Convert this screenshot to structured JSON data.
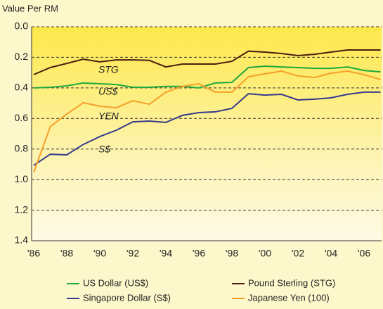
{
  "chart_data": {
    "type": "line",
    "y_label": "Value Per RM",
    "categories": [
      "'86",
      null,
      "'88",
      null,
      "'90",
      null,
      "'92",
      null,
      "'94",
      null,
      "'96",
      null,
      "'98",
      null,
      "'00",
      null,
      "'02",
      null,
      "'04",
      null,
      "'06",
      null
    ],
    "ylim": [
      0,
      1.4
    ],
    "y_inverted": true,
    "yticks": [
      {
        "value": 0,
        "label": "0.0"
      },
      0.2,
      0.4,
      0.6,
      0.8,
      {
        "value": 1,
        "label": "1.0"
      },
      1.2,
      1.4
    ],
    "grid": true,
    "annotations": [
      "STG",
      "US$",
      "YEN",
      "S$"
    ],
    "series": [
      {
        "name": "US Dollar (US$)",
        "color": "#1fa83c",
        "values": [
          0.4,
          0.396,
          0.387,
          0.368,
          0.373,
          0.378,
          0.396,
          0.396,
          0.39,
          0.39,
          0.4,
          0.368,
          0.364,
          0.267,
          0.258,
          0.263,
          0.267,
          0.272,
          0.272,
          0.263,
          0.286,
          0.295
        ]
      },
      {
        "name": "Pound Sterling (STG)",
        "color": "#4a1f10",
        "values": [
          0.313,
          0.267,
          0.24,
          0.212,
          0.23,
          0.217,
          0.217,
          0.22,
          0.263,
          0.244,
          0.244,
          0.244,
          0.226,
          0.16,
          0.166,
          0.175,
          0.189,
          0.18,
          0.166,
          0.152,
          0.152,
          0.152
        ]
      },
      {
        "name": "Singapore Dollar (S$)",
        "color": "#343a8c",
        "values": [
          0.907,
          0.834,
          0.838,
          0.77,
          0.719,
          0.677,
          0.622,
          0.617,
          0.626,
          0.58,
          0.562,
          0.557,
          0.534,
          0.438,
          0.447,
          0.442,
          0.479,
          0.474,
          0.465,
          0.442,
          0.428,
          0.428
        ]
      },
      {
        "name": "Japanese Yen (100)",
        "color": "#f5a02a",
        "values": [
          0.953,
          0.654,
          0.571,
          0.497,
          0.52,
          0.53,
          0.484,
          0.507,
          0.428,
          0.39,
          0.373,
          0.428,
          0.428,
          0.327,
          0.308,
          0.29,
          0.322,
          0.332,
          0.304,
          0.29,
          0.313,
          0.345
        ]
      }
    ]
  }
}
